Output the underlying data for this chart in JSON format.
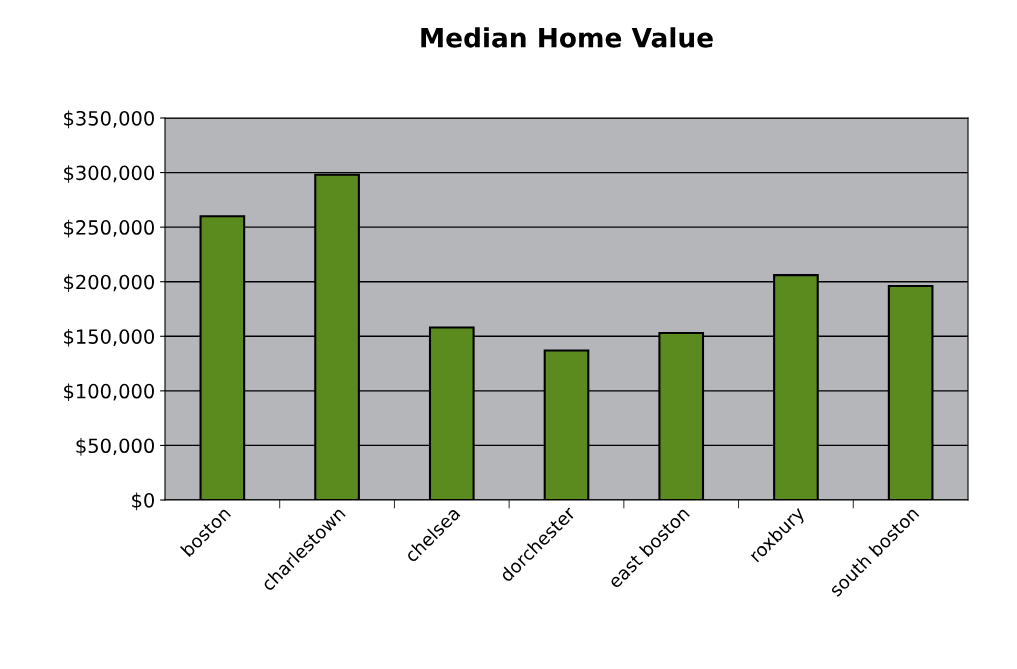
{
  "chart_data": {
    "type": "bar",
    "title": "Median Home Value",
    "categories": [
      "boston",
      "charlestown",
      "chelsea",
      "dorchester",
      "east boston",
      "roxbury",
      "south boston"
    ],
    "values": [
      260000,
      298000,
      158000,
      137000,
      153000,
      206000,
      196000
    ],
    "color": "#5b8a1f",
    "ylim": [
      0,
      350000
    ],
    "yticks": [
      {
        "value": 0,
        "label": "$0"
      },
      {
        "value": 50000,
        "label": "$50,000"
      },
      {
        "value": 100000,
        "label": "$100,000"
      },
      {
        "value": 150000,
        "label": "$150,000"
      },
      {
        "value": 200000,
        "label": "$200,000"
      },
      {
        "value": 250000,
        "label": "$250,000"
      },
      {
        "value": 300000,
        "label": "$300,000"
      },
      {
        "value": 350000,
        "label": "$350,000"
      }
    ],
    "grid": "y"
  }
}
